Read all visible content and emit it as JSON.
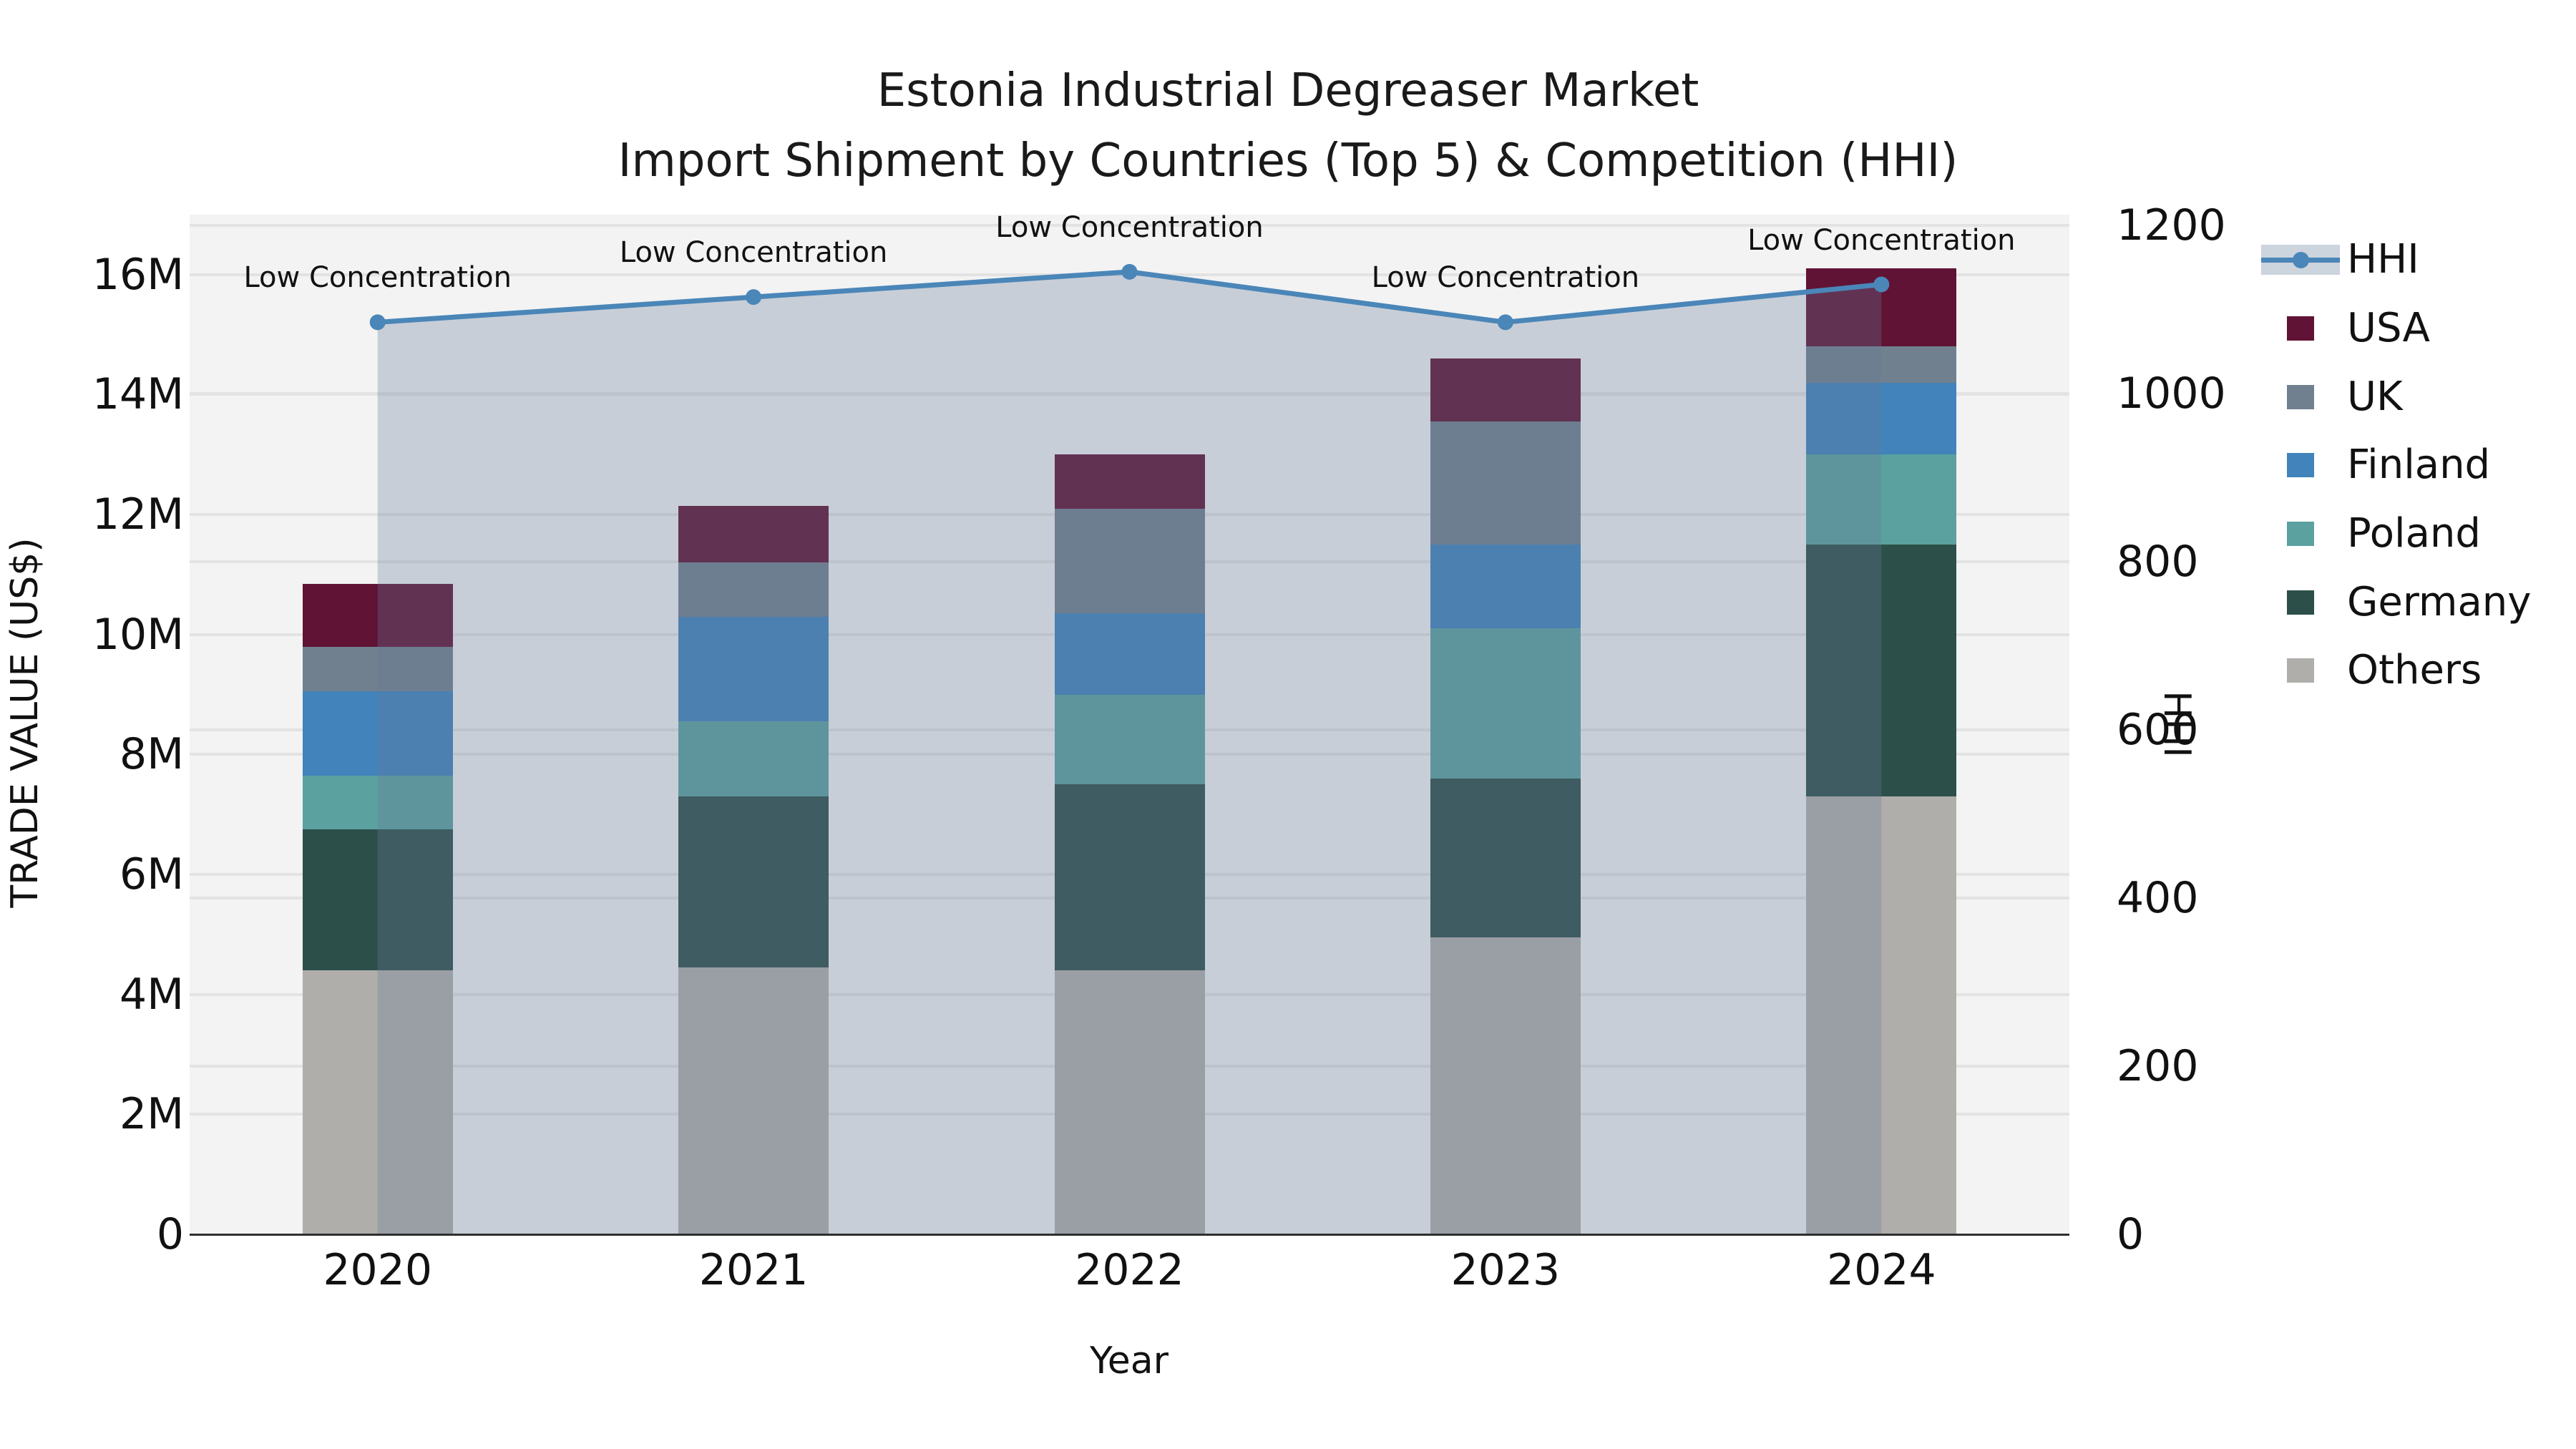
{
  "chart_data": {
    "type": "bar",
    "subtype": "stacked-bar-with-line-overlay",
    "title_line1": "Estonia Industrial Degreaser Market",
    "title_line2": "Import Shipment by Countries (Top 5) & Competition (HHI)",
    "xlabel": "Year",
    "ylabel_left": "TRADE VALUE (US$)",
    "ylabel_right": "HHI",
    "categories": [
      "2020",
      "2021",
      "2022",
      "2023",
      "2024"
    ],
    "bar_value_unit": "million US$",
    "series": [
      {
        "name": "Others",
        "color": "#b0aeab",
        "values": [
          4.4,
          4.45,
          4.4,
          4.95,
          7.3
        ]
      },
      {
        "name": "Germany",
        "color": "#2d4f4a",
        "values": [
          2.35,
          2.85,
          3.1,
          2.65,
          4.2
        ]
      },
      {
        "name": "Poland",
        "color": "#5ba1a0",
        "values": [
          0.9,
          1.25,
          1.5,
          2.5,
          1.5
        ]
      },
      {
        "name": "Finland",
        "color": "#4183ba",
        "values": [
          1.4,
          1.75,
          1.35,
          1.4,
          1.2
        ]
      },
      {
        "name": "UK",
        "color": "#71808f",
        "values": [
          0.75,
          0.9,
          1.75,
          2.05,
          0.6
        ]
      },
      {
        "name": "USA",
        "color": "#601335",
        "values": [
          1.05,
          0.95,
          0.9,
          1.05,
          1.3
        ]
      }
    ],
    "bar_totals": [
      10.85,
      12.15,
      13.0,
      14.6,
      16.1
    ],
    "hhi_line": {
      "name": "HHI",
      "color": "#4a86b8",
      "area_fill": "rgba(103,124,153,0.30)",
      "values": [
        1085,
        1115,
        1145,
        1085,
        1130
      ]
    },
    "annotations": [
      "Low Concentration",
      "Low Concentration",
      "Low Concentration",
      "Low Concentration",
      "Low Concentration"
    ],
    "left_axis": {
      "tick_labels": [
        "0",
        "2M",
        "4M",
        "6M",
        "8M",
        "10M",
        "12M",
        "14M",
        "16M"
      ],
      "tick_values": [
        0,
        2,
        4,
        6,
        8,
        10,
        12,
        14,
        16
      ],
      "max": 17.0
    },
    "right_axis": {
      "tick_labels": [
        "0",
        "200",
        "400",
        "600",
        "800",
        "1000",
        "1200"
      ],
      "tick_values": [
        0,
        200,
        400,
        600,
        800,
        1000,
        1200
      ],
      "max": 1213
    },
    "legend_order": [
      "HHI",
      "USA",
      "UK",
      "Finland",
      "Poland",
      "Germany",
      "Others"
    ],
    "grid": true,
    "legend_position": "right-outside"
  }
}
